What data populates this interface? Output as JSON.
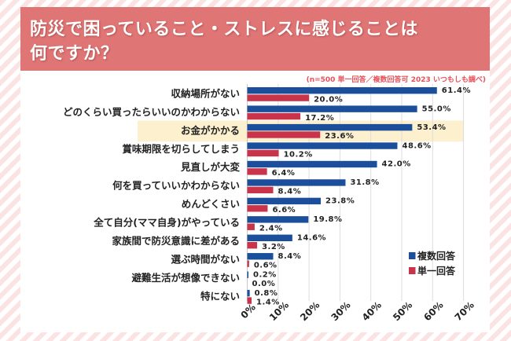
{
  "title": {
    "line1": "防災で困っていること・ストレスに感じることは",
    "line2": "何ですか？"
  },
  "subtitle": "(n=500 単一回答／複数回答可 2023 いつもしも調べ)",
  "colors": {
    "title_bg": "#e07575",
    "multi": "#1b4f9c",
    "single": "#c9344a",
    "highlight": "#fdf0cf",
    "grid": "#dddddd"
  },
  "chart_data": {
    "type": "bar",
    "orientation": "horizontal",
    "title": "防災で困っていること・ストレスに感じることは何ですか？",
    "xlabel": "",
    "ylabel": "",
    "xlim": [
      0,
      70
    ],
    "x_ticks": [
      "0%",
      "10%",
      "20%",
      "30%",
      "40%",
      "50%",
      "60%",
      "70%"
    ],
    "grid": true,
    "legend_position": "bottom-right",
    "highlighted_category": "お金がかかる",
    "categories": [
      "収納場所がない",
      "どのくらい買ったらいいのかわからない",
      "お金がかかる",
      "賞味期限を切らしてしまう",
      "見直しが大変",
      "何を買っていいかわからない",
      "めんどくさい",
      "全て自分(ママ自身)がやっている",
      "家族間で防災意識に差がある",
      "選ぶ時間がない",
      "避難生活が想像できない",
      "特にない"
    ],
    "series": [
      {
        "name": "複数回答",
        "color": "#1b4f9c",
        "values": [
          61.4,
          55.0,
          53.4,
          48.6,
          42.0,
          31.8,
          23.8,
          19.8,
          14.6,
          8.4,
          0.2,
          0.8
        ],
        "labels": [
          "61.4%",
          "55.0%",
          "53.4%",
          "48.6%",
          "42.0%",
          "31.8%",
          "23.8%",
          "19.8%",
          "14.6%",
          "8.4%",
          "0.2%",
          "0.8%"
        ]
      },
      {
        "name": "単一回答",
        "color": "#c9344a",
        "values": [
          20.0,
          17.2,
          23.6,
          10.2,
          6.4,
          8.4,
          6.6,
          2.4,
          3.2,
          0.6,
          0.0,
          1.4
        ],
        "labels": [
          "20.0%",
          "17.2%",
          "23.6%",
          "10.2%",
          "6.4%",
          "8.4%",
          "6.6%",
          "2.4%",
          "3.2%",
          "0.6%",
          "0.0%",
          "1.4%"
        ]
      }
    ]
  }
}
